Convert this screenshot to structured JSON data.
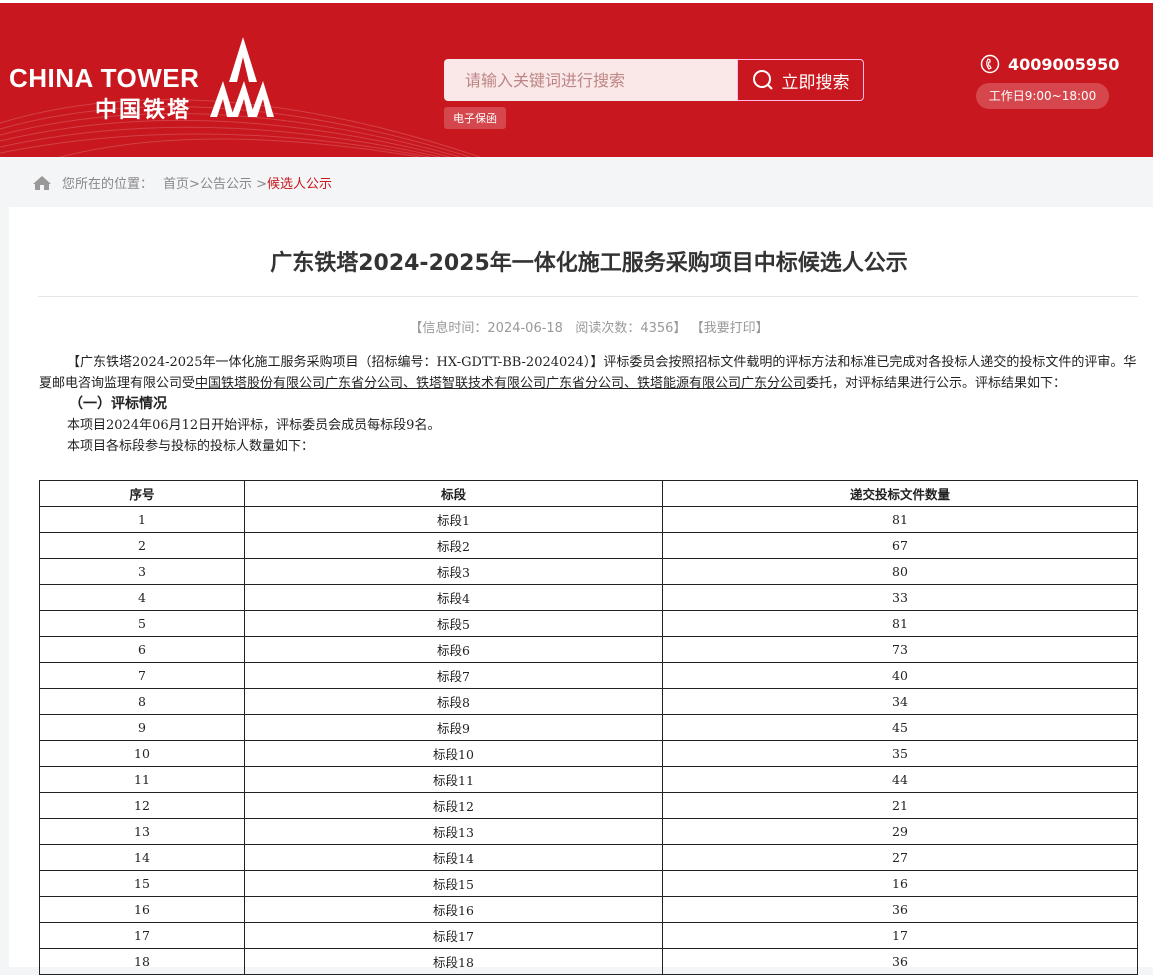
{
  "header": {
    "logo_en": "CHINA TOWER",
    "logo_cn": "中国铁塔",
    "search_placeholder": "请输入关键词进行搜索",
    "search_button": "立即搜索",
    "tag": "电子保函",
    "phone": "4009005950",
    "hours": "工作日9:00~18:00",
    "brand_color": "#c8171e"
  },
  "breadcrumb": {
    "label": "您所在的位置：",
    "home": "首页",
    "sep1": ">",
    "section": "公告公示",
    "sep2": " >",
    "current": "候选人公示"
  },
  "article": {
    "title": "广东铁塔2024-2025年一体化施工服务采购项目中标候选人公示",
    "meta": "【信息时间：2024-06-18   阅读次数：4356】",
    "print": "【我要打印】",
    "para1_a": "【广东铁塔2024-2025年一体化施工服务采购项目（招标编号：HX-GDTT-BB-2024024）】评标委员会按照招标文件载明的评标方法和标准已完成对各投标人递交的投标文件的评审。华夏邮电咨询监理有限公司受",
    "para1_u": "中国铁塔股份有限公司广东省分公司、铁塔智联技术有限公司广东省分公司、铁塔能源有限公司广东分公司",
    "para1_b": "委托，对评标结果进行公示。评标结果如下：",
    "section1": "（一）评标情况",
    "line1": "本项目2024年06月12日开始评标，评标委员会成员每标段9名。",
    "line2": "本项目各标段参与投标的投标人数量如下：",
    "table": {
      "headers": [
        "序号",
        "标段",
        "递交投标文件数量"
      ],
      "rows": [
        [
          "1",
          "标段1",
          "81"
        ],
        [
          "2",
          "标段2",
          "67"
        ],
        [
          "3",
          "标段3",
          "80"
        ],
        [
          "4",
          "标段4",
          "33"
        ],
        [
          "5",
          "标段5",
          "81"
        ],
        [
          "6",
          "标段6",
          "73"
        ],
        [
          "7",
          "标段7",
          "40"
        ],
        [
          "8",
          "标段8",
          "34"
        ],
        [
          "9",
          "标段9",
          "45"
        ],
        [
          "10",
          "标段10",
          "35"
        ],
        [
          "11",
          "标段11",
          "44"
        ],
        [
          "12",
          "标段12",
          "21"
        ],
        [
          "13",
          "标段13",
          "29"
        ],
        [
          "14",
          "标段14",
          "27"
        ],
        [
          "15",
          "标段15",
          "16"
        ],
        [
          "16",
          "标段16",
          "36"
        ],
        [
          "17",
          "标段17",
          "17"
        ],
        [
          "18",
          "标段18",
          "36"
        ]
      ]
    }
  }
}
